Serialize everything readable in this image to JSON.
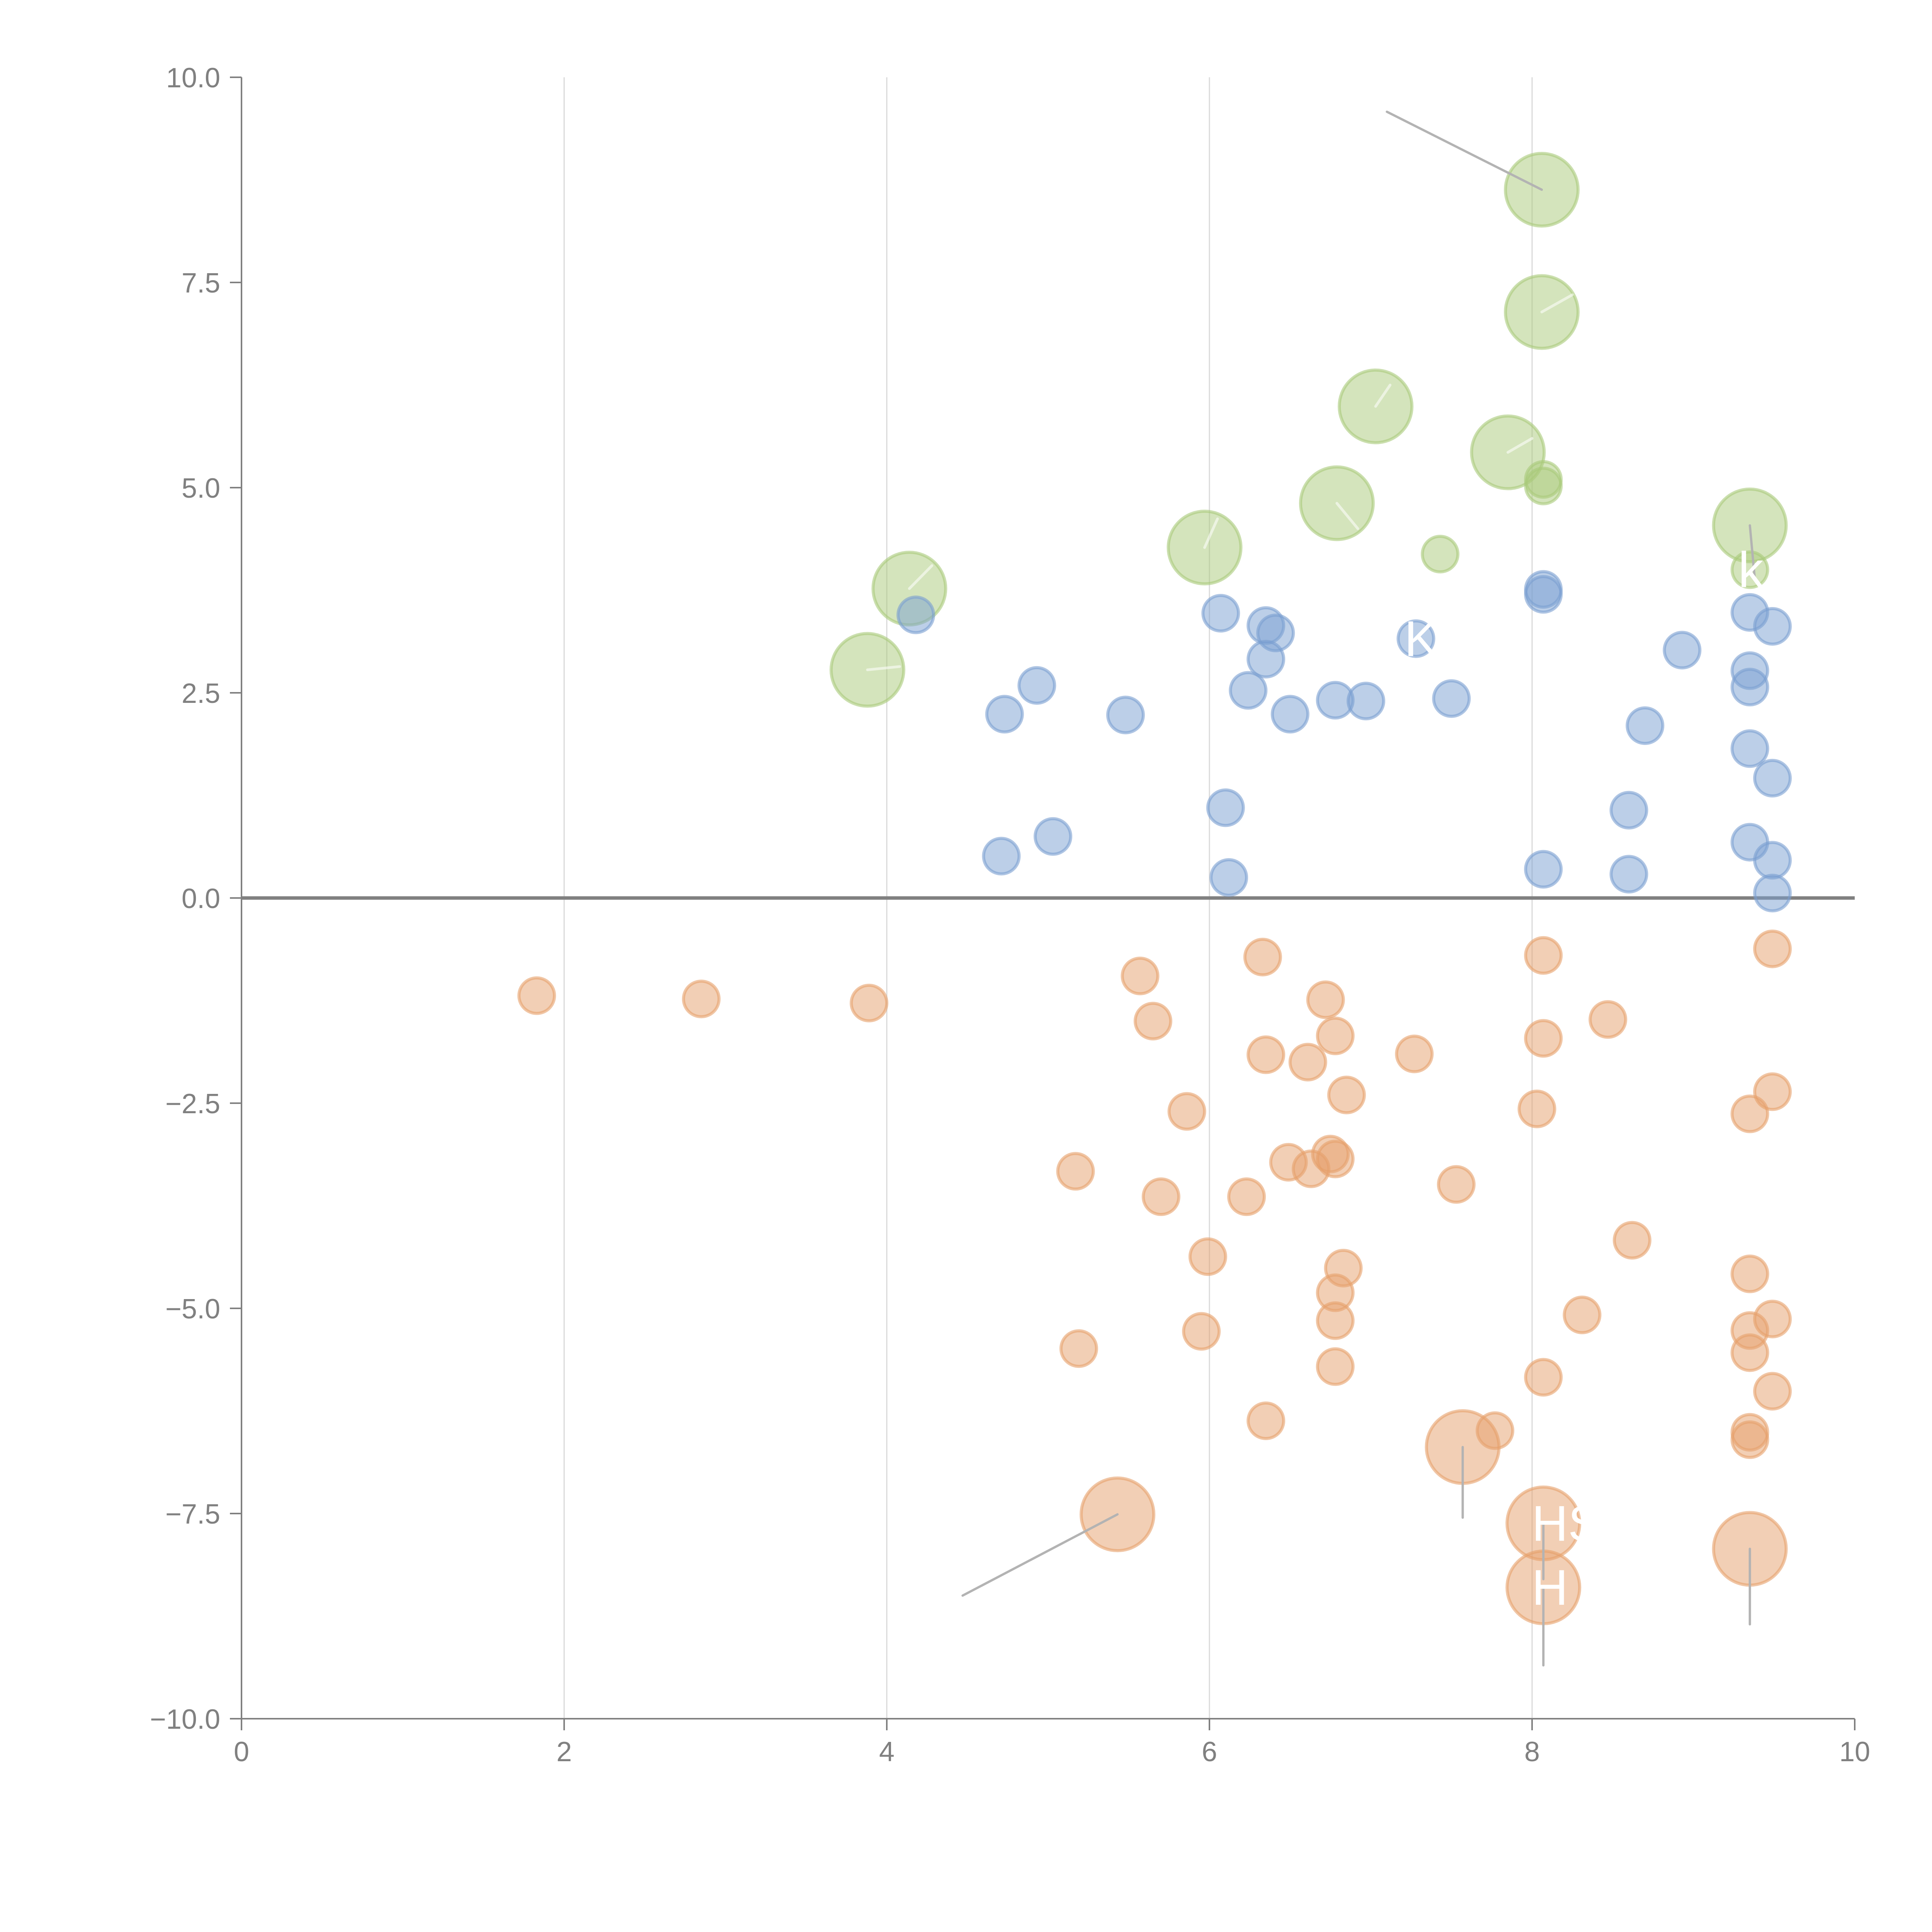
{
  "chart_data": {
    "type": "scatter",
    "title": "",
    "xlabel": "",
    "ylabel": "",
    "xlim": [
      0,
      10
    ],
    "ylim": [
      -10,
      10
    ],
    "x_ticks": [
      "0",
      "2",
      "4",
      "6",
      "8",
      "10"
    ],
    "x_tick_values": [
      0,
      2,
      4,
      6,
      8,
      10
    ],
    "y_ticks": [
      "10.0",
      "7.5",
      "5.0",
      "2.5",
      "0.0",
      "−2.5",
      "−5.0",
      "−7.5",
      "−10.0"
    ],
    "y_tick_values": [
      10,
      7.5,
      5,
      2.5,
      0,
      -2.5,
      -5,
      -7.5,
      -10
    ],
    "grid": "vertical",
    "zero_line": true,
    "legend": "none",
    "colors": {
      "green": "#a9c97a",
      "blue": "#7a9fd1",
      "orange": "#e6a06b",
      "axis": "#808080"
    },
    "series": [
      {
        "name": "green",
        "color_key": "green",
        "points": [
          {
            "x": 8.06,
            "y": 8.63,
            "size": "large",
            "leader": [
              7.1,
              9.58
            ]
          },
          {
            "x": 8.06,
            "y": 7.14,
            "size": "large",
            "leader": [
              8.25,
              7.35
            ]
          },
          {
            "x": 7.03,
            "y": 5.99,
            "size": "large",
            "leader": [
              7.12,
              6.25
            ]
          },
          {
            "x": 7.85,
            "y": 5.43,
            "size": "large",
            "leader": [
              8.0,
              5.6
            ]
          },
          {
            "x": 8.07,
            "y": 5.1,
            "size": "small"
          },
          {
            "x": 8.07,
            "y": 5.02,
            "size": "small"
          },
          {
            "x": 6.79,
            "y": 4.81,
            "size": "large",
            "leader": [
              6.92,
              4.5
            ]
          },
          {
            "x": 5.97,
            "y": 4.27,
            "size": "large",
            "leader": [
              6.05,
              4.62
            ]
          },
          {
            "x": 7.43,
            "y": 4.19,
            "size": "small"
          },
          {
            "x": 9.35,
            "y": 4.54,
            "size": "large",
            "leader": [
              9.38,
              3.9
            ]
          },
          {
            "x": 9.35,
            "y": 4.0,
            "size": "small",
            "label": "k"
          },
          {
            "x": 4.14,
            "y": 3.77,
            "size": "large",
            "leader": [
              4.28,
              4.05
            ]
          },
          {
            "x": 3.88,
            "y": 2.78,
            "size": "large",
            "leader": [
              4.08,
              2.82
            ]
          }
        ]
      },
      {
        "name": "blue",
        "color_key": "blue",
        "points": [
          {
            "x": 4.18,
            "y": 3.45
          },
          {
            "x": 6.07,
            "y": 3.47
          },
          {
            "x": 6.35,
            "y": 3.32
          },
          {
            "x": 6.41,
            "y": 3.23
          },
          {
            "x": 6.35,
            "y": 2.91
          },
          {
            "x": 8.07,
            "y": 3.76
          },
          {
            "x": 8.07,
            "y": 3.7
          },
          {
            "x": 7.28,
            "y": 3.16,
            "label": "K"
          },
          {
            "x": 8.93,
            "y": 3.02
          },
          {
            "x": 9.35,
            "y": 3.48
          },
          {
            "x": 9.49,
            "y": 3.31
          },
          {
            "x": 9.35,
            "y": 2.77
          },
          {
            "x": 9.35,
            "y": 2.57
          },
          {
            "x": 4.93,
            "y": 2.59
          },
          {
            "x": 4.73,
            "y": 2.24
          },
          {
            "x": 5.48,
            "y": 2.23
          },
          {
            "x": 6.24,
            "y": 2.53
          },
          {
            "x": 6.5,
            "y": 2.24
          },
          {
            "x": 6.78,
            "y": 2.41
          },
          {
            "x": 6.97,
            "y": 2.4
          },
          {
            "x": 7.5,
            "y": 2.43
          },
          {
            "x": 8.7,
            "y": 2.1
          },
          {
            "x": 9.35,
            "y": 1.82
          },
          {
            "x": 9.49,
            "y": 1.46
          },
          {
            "x": 6.1,
            "y": 1.1
          },
          {
            "x": 8.6,
            "y": 1.07
          },
          {
            "x": 4.71,
            "y": 0.51
          },
          {
            "x": 5.03,
            "y": 0.75
          },
          {
            "x": 6.12,
            "y": 0.25
          },
          {
            "x": 8.07,
            "y": 0.35
          },
          {
            "x": 8.6,
            "y": 0.29
          },
          {
            "x": 9.35,
            "y": 0.68
          },
          {
            "x": 9.49,
            "y": 0.46
          },
          {
            "x": 9.49,
            "y": 0.06
          }
        ]
      },
      {
        "name": "orange",
        "color_key": "orange",
        "points": [
          {
            "x": 1.83,
            "y": -1.19
          },
          {
            "x": 2.85,
            "y": -1.23
          },
          {
            "x": 3.89,
            "y": -1.28
          },
          {
            "x": 5.57,
            "y": -0.95
          },
          {
            "x": 5.65,
            "y": -1.5
          },
          {
            "x": 6.33,
            "y": -0.72
          },
          {
            "x": 6.72,
            "y": -1.24
          },
          {
            "x": 6.78,
            "y": -1.68
          },
          {
            "x": 6.35,
            "y": -1.91
          },
          {
            "x": 6.61,
            "y": -2.0
          },
          {
            "x": 7.27,
            "y": -1.9
          },
          {
            "x": 8.07,
            "y": -0.7
          },
          {
            "x": 8.07,
            "y": -1.71
          },
          {
            "x": 8.47,
            "y": -1.48
          },
          {
            "x": 9.49,
            "y": -0.62
          },
          {
            "x": 5.86,
            "y": -2.6
          },
          {
            "x": 6.85,
            "y": -2.4
          },
          {
            "x": 8.03,
            "y": -2.57
          },
          {
            "x": 9.35,
            "y": -2.63
          },
          {
            "x": 9.49,
            "y": -2.36
          },
          {
            "x": 5.17,
            "y": -3.33
          },
          {
            "x": 6.49,
            "y": -3.22
          },
          {
            "x": 6.63,
            "y": -3.3
          },
          {
            "x": 6.75,
            "y": -3.12
          },
          {
            "x": 6.78,
            "y": -3.18
          },
          {
            "x": 5.7,
            "y": -3.64
          },
          {
            "x": 6.23,
            "y": -3.64
          },
          {
            "x": 7.53,
            "y": -3.49
          },
          {
            "x": 8.62,
            "y": -4.17
          },
          {
            "x": 5.99,
            "y": -4.37
          },
          {
            "x": 6.83,
            "y": -4.51
          },
          {
            "x": 9.35,
            "y": -4.58
          },
          {
            "x": 6.78,
            "y": -4.81
          },
          {
            "x": 6.78,
            "y": -5.15
          },
          {
            "x": 8.31,
            "y": -5.08
          },
          {
            "x": 9.35,
            "y": -5.27
          },
          {
            "x": 9.49,
            "y": -5.13
          },
          {
            "x": 5.19,
            "y": -5.49
          },
          {
            "x": 5.95,
            "y": -5.28
          },
          {
            "x": 9.35,
            "y": -5.54
          },
          {
            "x": 6.78,
            "y": -5.71
          },
          {
            "x": 8.07,
            "y": -5.84
          },
          {
            "x": 9.49,
            "y": -6.01
          },
          {
            "x": 6.35,
            "y": -6.37
          },
          {
            "x": 7.77,
            "y": -6.49
          },
          {
            "x": 9.35,
            "y": -6.51
          },
          {
            "x": 9.35,
            "y": -6.6
          },
          {
            "x": 5.43,
            "y": -7.51,
            "size": "large",
            "leader": [
              4.47,
              -8.5
            ]
          },
          {
            "x": 7.57,
            "y": -6.69,
            "size": "large",
            "leader": [
              7.57,
              -7.55
            ]
          },
          {
            "x": 8.07,
            "y": -7.62,
            "size": "large",
            "label": "HS",
            "leader": [
              8.07,
              -8.3
            ]
          },
          {
            "x": 8.07,
            "y": -8.4,
            "size": "large",
            "label": "H",
            "leader": [
              8.07,
              -9.35
            ]
          },
          {
            "x": 9.35,
            "y": -7.93,
            "size": "large",
            "leader": [
              9.35,
              -8.85
            ]
          }
        ]
      }
    ]
  }
}
